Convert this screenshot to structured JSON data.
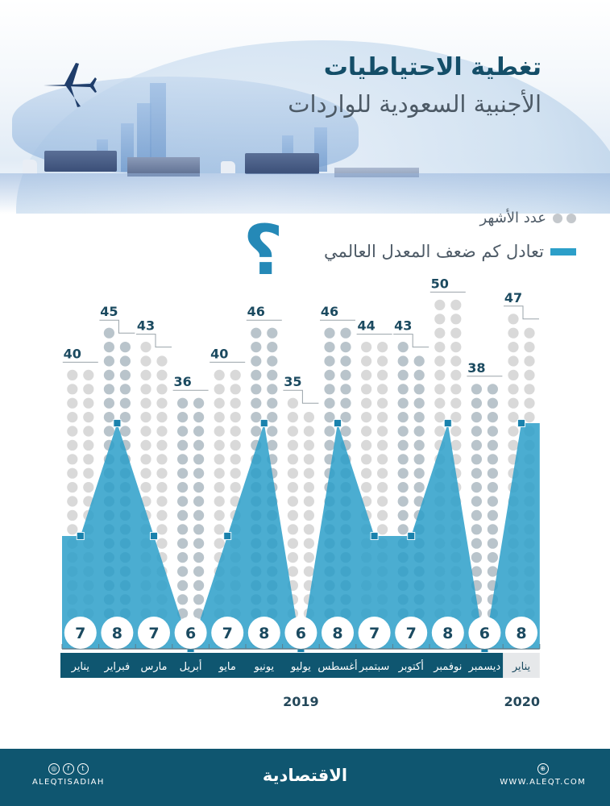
{
  "header": {
    "title_line1": "تغطية الاحتياطيات",
    "title_line2": "الأجنبية السعودية للواردات"
  },
  "legend": {
    "months_label": "عدد الأشهر",
    "ratio_label": "تعادل كم ضعف المعدل العالمي",
    "question_mark": "?"
  },
  "colors": {
    "dot_light": "#d9d9d9",
    "dot_dark": "#b9c4cb",
    "area_fill": "#2c9fc9",
    "marker": "#1a82ad",
    "axis_bar": "#0f5670",
    "label_2020_bg": "#e6e8ea",
    "value_text": "#1b4a60"
  },
  "chart_data": {
    "type": "bar+area",
    "title": "تغطية الاحتياطيات الأجنبية السعودية للواردات",
    "categories": [
      "يناير",
      "فبراير",
      "مارس",
      "أبريل",
      "مايو",
      "يونيو",
      "يوليو",
      "أغسطس",
      "سبتمبر",
      "أكتوبر",
      "نوفمبر",
      "ديسمبر",
      "يناير"
    ],
    "years": [
      {
        "label": "2019",
        "span": [
          0,
          11
        ]
      },
      {
        "label": "2020",
        "span": [
          12,
          12
        ]
      }
    ],
    "series": [
      {
        "name": "عدد الأشهر",
        "type": "dot-bar",
        "values": [
          40,
          45,
          43,
          36,
          40,
          46,
          35,
          46,
          44,
          43,
          50,
          38,
          47
        ]
      },
      {
        "name": "تعادل كم ضعف المعدل العالمي",
        "type": "area",
        "values": [
          7,
          8,
          7,
          6,
          7,
          8,
          6,
          8,
          7,
          7,
          8,
          6,
          8
        ]
      }
    ],
    "legend_position": "top-right",
    "grid": false
  },
  "footer": {
    "social_handle": "ALEQTISADIAH",
    "brand": "الاقتصادية",
    "website": "WWW.ALEQT.COM",
    "social_icons": [
      "instagram-icon",
      "facebook-icon",
      "twitter-icon"
    ]
  }
}
